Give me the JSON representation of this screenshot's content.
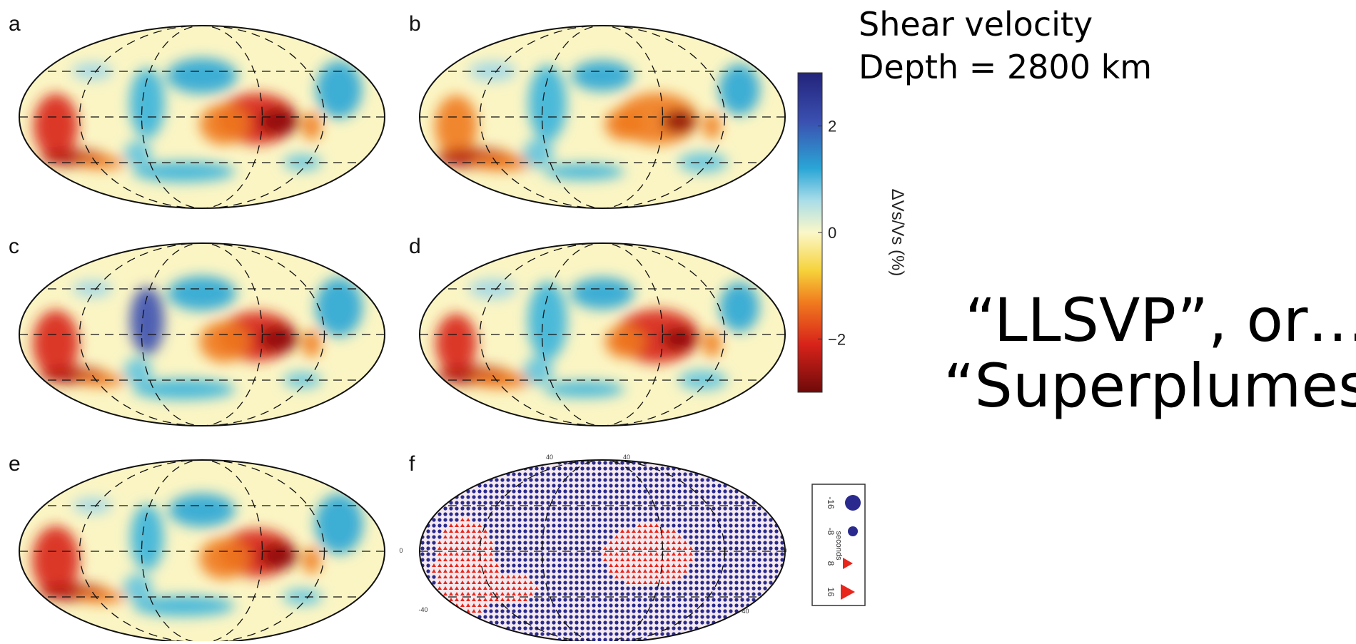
{
  "panel_labels": [
    "a",
    "b",
    "c",
    "d",
    "e",
    "f"
  ],
  "title": [
    "Shear velocity",
    "Depth = 2800 km"
  ],
  "colorbar": {
    "label": "ΔVs/Vs (%)",
    "range": [
      -3,
      3
    ],
    "ticks": [
      2,
      0,
      {
        "value": -2,
        "label": "−2"
      }
    ]
  },
  "headline": [
    "“LLSVP”, or…",
    "“Superplumes”"
  ],
  "legend": {
    "title": "seconds",
    "entries": [
      "-16",
      "-8",
      "8",
      "16"
    ]
  },
  "map_f_labels": [
    "40",
    "40",
    "0",
    "0",
    "-40",
    "-40"
  ]
}
